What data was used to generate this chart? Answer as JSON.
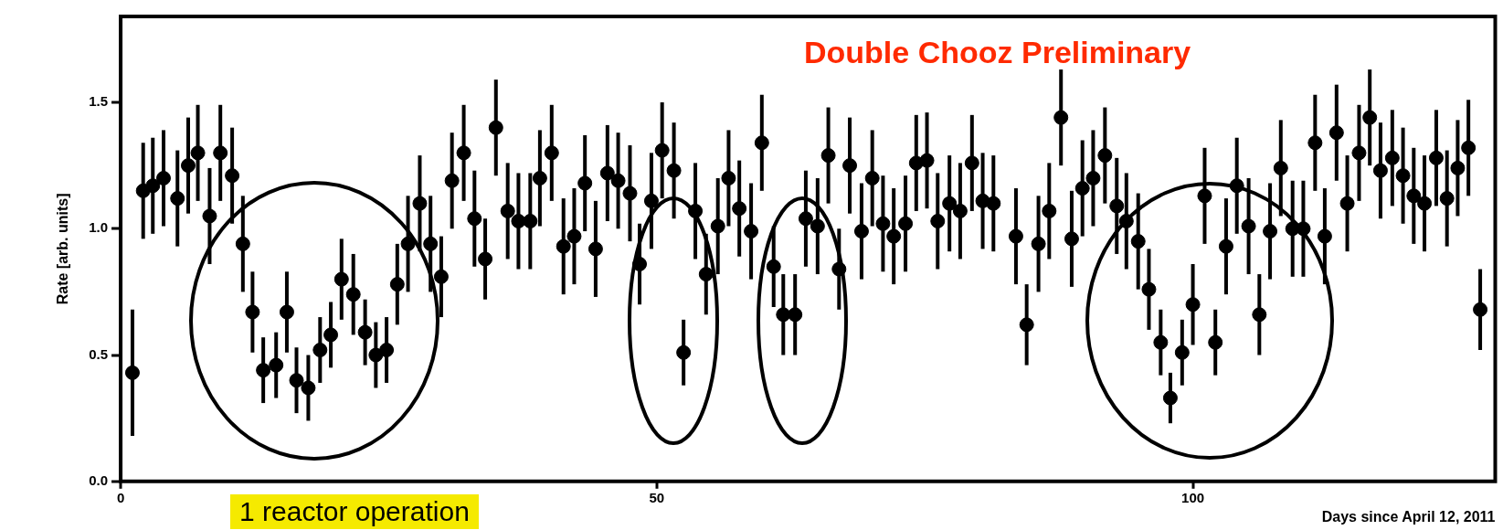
{
  "chart_data": {
    "type": "scatter",
    "xlabel": "Days since April 12, 2011",
    "ylabel": "Rate [arb. units]",
    "annotations": [
      "Double Chooz Preliminary",
      "1 reactor operation"
    ],
    "xlim": [
      0,
      128.2
    ],
    "xticks": [
      0,
      50,
      100
    ],
    "ylim": [
      0,
      1.84
    ],
    "yticks": [
      {
        "value": 0,
        "label": "0.0"
      },
      {
        "value": 0.5,
        "label": "0.5"
      },
      {
        "value": 1,
        "label": "1.0"
      },
      {
        "value": 1.5,
        "label": "1.5"
      }
    ],
    "grid": false,
    "legend": false,
    "marker": "circle",
    "series": [
      {
        "color": "#000000",
        "x": [
          1.1,
          2.1,
          3.0,
          4.0,
          5.3,
          6.3,
          7.2,
          8.3,
          9.3,
          10.4,
          11.4,
          12.3,
          13.3,
          14.5,
          15.5,
          16.4,
          17.5,
          18.6,
          19.6,
          20.6,
          21.7,
          22.8,
          23.8,
          24.8,
          25.8,
          26.8,
          27.9,
          28.9,
          29.9,
          30.9,
          32.0,
          33.0,
          34.0,
          35.0,
          36.1,
          37.1,
          38.2,
          39.1,
          40.2,
          41.3,
          42.3,
          43.3,
          44.3,
          45.4,
          46.4,
          47.5,
          48.4,
          49.5,
          50.5,
          51.6,
          52.5,
          53.6,
          54.6,
          55.7,
          56.7,
          57.7,
          58.8,
          59.8,
          60.9,
          61.8,
          62.9,
          63.9,
          65.0,
          66.0,
          67.0,
          68.0,
          69.1,
          70.1,
          71.1,
          72.1,
          73.2,
          74.2,
          75.2,
          76.2,
          77.3,
          78.3,
          79.4,
          80.4,
          81.4,
          83.5,
          84.5,
          85.6,
          86.6,
          87.7,
          88.7,
          89.7,
          90.7,
          91.8,
          92.9,
          93.8,
          94.9,
          95.9,
          97.0,
          97.9,
          99.0,
          100.0,
          101.1,
          102.1,
          103.1,
          104.1,
          105.2,
          106.2,
          107.2,
          108.2,
          109.3,
          110.3,
          111.4,
          112.3,
          113.4,
          114.4,
          115.5,
          116.5,
          117.5,
          118.6,
          119.6,
          120.6,
          121.6,
          122.7,
          123.7,
          124.7,
          125.7,
          126.8
        ],
        "values": [
          0.43,
          1.15,
          1.17,
          1.2,
          1.12,
          1.25,
          1.3,
          1.05,
          1.3,
          1.21,
          0.94,
          0.67,
          0.44,
          0.46,
          0.67,
          0.4,
          0.37,
          0.52,
          0.58,
          0.8,
          0.74,
          0.59,
          0.5,
          0.52,
          0.78,
          0.94,
          1.1,
          0.94,
          0.81,
          1.19,
          1.3,
          1.04,
          0.88,
          1.4,
          1.07,
          1.03,
          1.03,
          1.2,
          1.3,
          0.93,
          0.97,
          1.18,
          0.92,
          1.22,
          1.19,
          1.14,
          0.86,
          1.11,
          1.31,
          1.23,
          0.51,
          1.07,
          0.82,
          1.01,
          1.2,
          1.08,
          0.99,
          1.34,
          0.85,
          0.66,
          0.66,
          1.04,
          1.01,
          1.29,
          0.84,
          1.25,
          0.99,
          1.2,
          1.02,
          0.97,
          1.02,
          1.26,
          1.27,
          1.03,
          1.1,
          1.07,
          1.26,
          1.11,
          1.1,
          0.97,
          0.62,
          0.94,
          1.07,
          1.44,
          0.96,
          1.16,
          1.2,
          1.29,
          1.09,
          1.03,
          0.95,
          0.76,
          0.55,
          0.33,
          0.51,
          0.7,
          1.13,
          0.55,
          0.93,
          1.17,
          1.01,
          0.66,
          0.99,
          1.24,
          1.0,
          1.0,
          1.34,
          0.97,
          1.38,
          1.1,
          1.3,
          1.44,
          1.23,
          1.28,
          1.21,
          1.13,
          1.1,
          1.28,
          1.12,
          1.24,
          1.32,
          0.68
        ],
        "errors": [
          0.25,
          0.19,
          0.19,
          0.19,
          0.19,
          0.19,
          0.19,
          0.19,
          0.19,
          0.19,
          0.19,
          0.16,
          0.13,
          0.13,
          0.16,
          0.13,
          0.13,
          0.13,
          0.13,
          0.16,
          0.16,
          0.13,
          0.13,
          0.13,
          0.16,
          0.19,
          0.19,
          0.19,
          0.16,
          0.19,
          0.19,
          0.19,
          0.16,
          0.19,
          0.19,
          0.19,
          0.19,
          0.19,
          0.19,
          0.19,
          0.19,
          0.19,
          0.19,
          0.19,
          0.19,
          0.19,
          0.16,
          0.19,
          0.19,
          0.19,
          0.13,
          0.19,
          0.16,
          0.19,
          0.19,
          0.19,
          0.19,
          0.19,
          0.16,
          0.16,
          0.16,
          0.19,
          0.19,
          0.19,
          0.16,
          0.19,
          0.19,
          0.19,
          0.19,
          0.19,
          0.19,
          0.19,
          0.19,
          0.19,
          0.19,
          0.19,
          0.19,
          0.19,
          0.19,
          0.19,
          0.16,
          0.19,
          0.19,
          0.19,
          0.19,
          0.19,
          0.19,
          0.19,
          0.19,
          0.19,
          0.19,
          0.16,
          0.13,
          0.1,
          0.13,
          0.16,
          0.19,
          0.13,
          0.19,
          0.19,
          0.19,
          0.16,
          0.19,
          0.19,
          0.19,
          0.19,
          0.19,
          0.19,
          0.19,
          0.19,
          0.19,
          0.19,
          0.19,
          0.19,
          0.19,
          0.19,
          0.19,
          0.19,
          0.19,
          0.19,
          0.19,
          0.16
        ]
      }
    ]
  }
}
